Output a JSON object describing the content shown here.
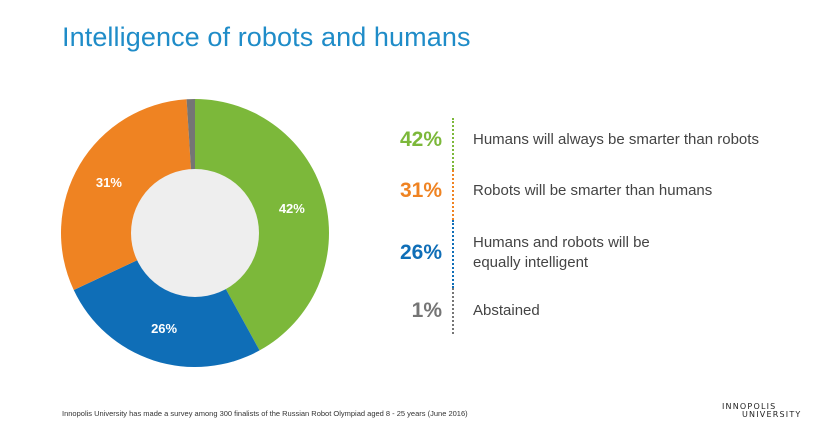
{
  "title": "Intelligence of robots and humans",
  "chart_data": {
    "type": "pie",
    "title": "Intelligence of robots and humans",
    "slices": [
      {
        "label": "Humans will always be smarter than robots",
        "value": 42,
        "pct_label": "42%",
        "color": "#7cb83a"
      },
      {
        "label": "Robots will be smarter than humans",
        "value": 31,
        "pct_label": "31%",
        "color": "#ef8322"
      },
      {
        "label": "Humans and robots will be equally intelligent",
        "value": 26,
        "pct_label": "26%",
        "color": "#0f6eb7"
      },
      {
        "label": "Abstained",
        "value": 1,
        "pct_label": "1%",
        "color": "#757575"
      }
    ],
    "hole_color": "#eeeeee"
  },
  "legend": [
    {
      "pct": "42%",
      "line1": "Humans will always be smarter than robots",
      "line2": "",
      "color": "#7cb83a"
    },
    {
      "pct": "31%",
      "line1": "Robots will be smarter than humans",
      "line2": "",
      "color": "#ef8322"
    },
    {
      "pct": "26%",
      "line1": "Humans and robots will be",
      "line2": "equally intelligent",
      "color": "#0f6eb7"
    },
    {
      "pct": "1%",
      "line1": "Abstained",
      "line2": "",
      "color": "#757575"
    }
  ],
  "footnote": "Innopolis University has made a survey among 300 finalists of the Russian Robot Olympiad aged 8 - 25 years (June 2016)",
  "logo": {
    "line1": "INNOPOLIS",
    "line2": "UNIVERSITY"
  }
}
